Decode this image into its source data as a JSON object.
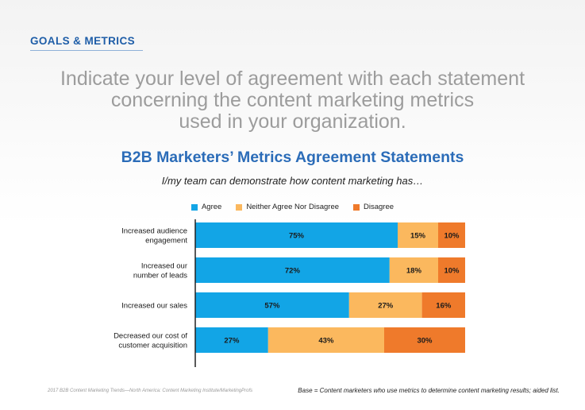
{
  "header": {
    "section_label": "GOALS & METRICS",
    "question_lines": [
      "Indicate your level of agreement with each statement",
      "concerning the content marketing metrics",
      "used in your organization."
    ]
  },
  "footer": {
    "source": "2017 B2B Content Marketing Trends—North America: Content Marketing Institute/MarketingProfs",
    "base_note": "Base = Content marketers who use metrics to determine content marketing results; aided list."
  },
  "colors": {
    "agree": "#12a5e6",
    "neutral": "#fbb85e",
    "disagree": "#ef7a2b",
    "axis": "#222222"
  },
  "chart_data": {
    "type": "bar",
    "orientation": "horizontal",
    "stacked": true,
    "title": "B2B Marketers’ Metrics Agreement Statements",
    "subtitle": "I/my team can demonstrate how content marketing has…",
    "legend_position": "top",
    "categories": [
      [
        "Increased audience",
        "engagement"
      ],
      [
        "Increased our",
        "number of leads"
      ],
      [
        "Increased our sales"
      ],
      [
        "Decreased our cost of",
        "customer acquisition"
      ]
    ],
    "series": [
      {
        "name": "Agree",
        "values": [
          75,
          72,
          57,
          27
        ]
      },
      {
        "name": "Neither Agree Nor Disagree",
        "values": [
          15,
          18,
          27,
          43
        ]
      },
      {
        "name": "Disagree",
        "values": [
          10,
          10,
          16,
          30
        ]
      }
    ],
    "value_suffix": "%",
    "xlim": [
      0,
      100
    ]
  }
}
